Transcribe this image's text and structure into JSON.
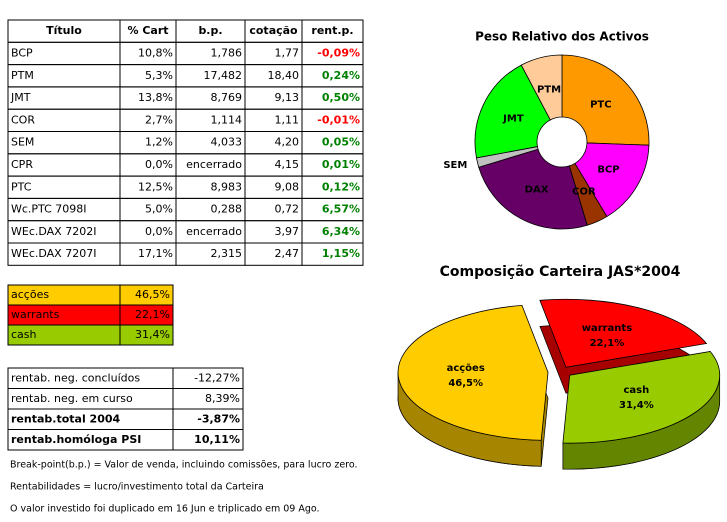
{
  "table": {
    "header": [
      "Título",
      "% Cart",
      "b.p.",
      "cotação",
      "rent.p."
    ],
    "rows": [
      [
        "BCP",
        "10,8%",
        "1,786",
        "1,77",
        "-0,09%"
      ],
      [
        "PTM",
        "5,3%",
        "17,482",
        "18,40",
        "0,24%"
      ],
      [
        "JMT",
        "13,8%",
        "8,769",
        "9,13",
        "0,50%"
      ],
      [
        "COR",
        "2,7%",
        "1,114",
        "1,11",
        "-0,01%"
      ],
      [
        "SEM",
        "1,2%",
        "4,033",
        "4,20",
        "0,05%"
      ],
      [
        "CPR",
        "0,0%",
        "encerrado",
        "4,15",
        "0,01%"
      ],
      [
        "PTC",
        "12,5%",
        "8,983",
        "9,08",
        "0,12%"
      ],
      [
        "Wc.PTC 7098I",
        "5,0%",
        "0,288",
        "0,72",
        "6,57%"
      ],
      [
        "WEc.DAX 7202I",
        "0,0%",
        "encerrado",
        "3,97",
        "6,34%"
      ],
      [
        "WEc.DAX 7207I",
        "17,1%",
        "2,315",
        "2,47",
        "1,15%"
      ]
    ]
  },
  "allocation": {
    "rows": [
      [
        "acções",
        "46,5%"
      ],
      [
        "warrants",
        "22,1%"
      ],
      [
        "cash",
        "31,4%"
      ]
    ],
    "colors": [
      "#ffcc00",
      "#ff0000",
      "#99cc00"
    ]
  },
  "returns": {
    "rows": [
      [
        "rentab. neg. concluídos",
        "-12,27%"
      ],
      [
        "rentab. neg. em curso",
        "8,39%"
      ],
      [
        "rentab.total 2004",
        "-3,87%"
      ],
      [
        "rentab.homóloga PSI",
        "10,11%"
      ]
    ],
    "bold_rows": [
      2,
      3
    ]
  },
  "notes": [
    "Break-point(b.p.) = Valor de venda, incluindo comissões, para lucro zero.",
    "Rentabilidades = lucro/investimento total da Carteira",
    "O valor investido foi duplicado em 16 Jun e triplicado em 09 Ago."
  ],
  "chart_data": [
    {
      "type": "pie",
      "title": "Peso Relativo dos Activos",
      "donut": true,
      "categories": [
        "PTC",
        "BCP",
        "COR",
        "DAX",
        "SEM",
        "JMT",
        "PTM"
      ],
      "values": [
        17.5,
        10.8,
        2.7,
        17.1,
        1.2,
        13.8,
        5.3
      ],
      "colors": [
        "#ff9900",
        "#ff00ff",
        "#993300",
        "#660066",
        "#c0c0c0",
        "#00ff00",
        "#ffcc99"
      ]
    },
    {
      "type": "pie",
      "title": "Composição Carteira JAS*2004",
      "three_d": true,
      "exploded": true,
      "categories": [
        "warrants",
        "cash",
        "acções"
      ],
      "values": [
        22.1,
        31.4,
        46.5
      ],
      "value_labels": [
        "22,1%",
        "31,4%",
        "46,5%"
      ],
      "colors": [
        "#ff0000",
        "#99cc00",
        "#ffcc00"
      ]
    }
  ]
}
